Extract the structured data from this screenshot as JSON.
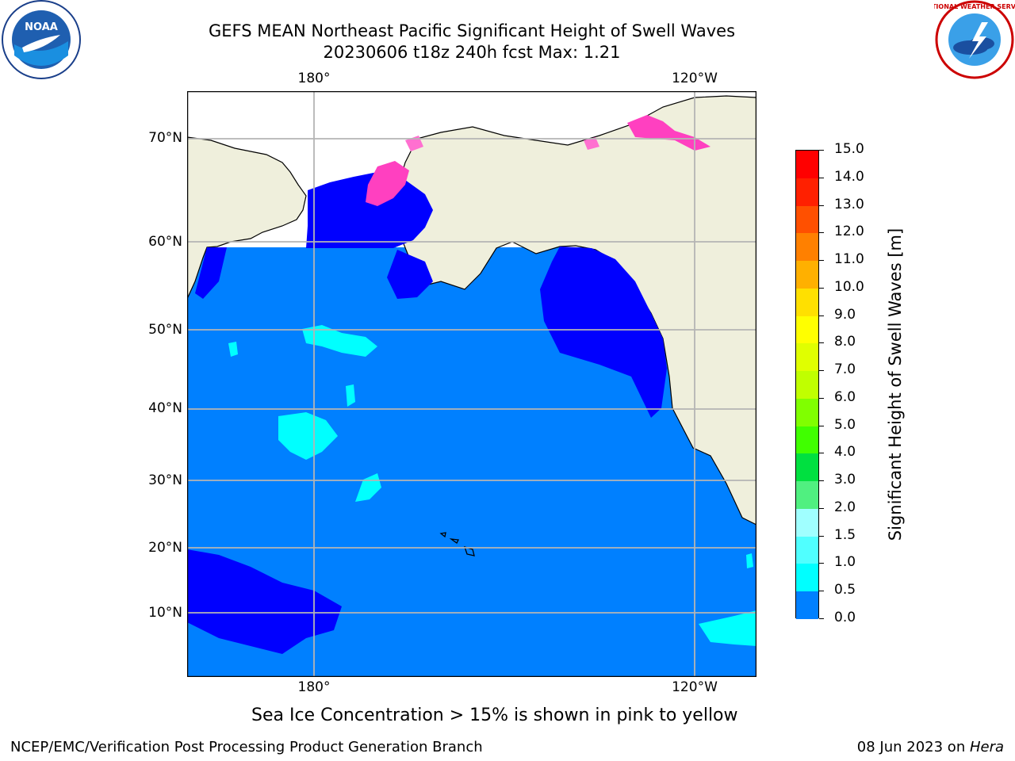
{
  "header": {
    "title_line1": "GEFS MEAN Northeast Pacific Significant Height of Swell Waves",
    "title_line2": "20230606 t18z 240h fcst   Max: 1.21"
  },
  "logos": {
    "left": "NOAA",
    "right": "NATIONAL WEATHER SERVICE"
  },
  "map": {
    "top_lon_labels": [
      "180°",
      "120°W"
    ],
    "bottom_lon_labels": [
      "180°",
      "120°W"
    ],
    "lat_labels": [
      "70°N",
      "60°N",
      "50°N",
      "40°N",
      "30°N",
      "20°N",
      "10°N"
    ],
    "colors": {
      "ocean": "#0080ff",
      "land": "#efefdc",
      "low": "#0000ff",
      "cyan": "#00ffff"
    }
  },
  "colorbar": {
    "title": "Significant Height of Swell Waves [m]",
    "labels": [
      "15.0",
      "14.0",
      "13.0",
      "12.0",
      "11.0",
      "10.0",
      "9.0",
      "8.0",
      "7.0",
      "6.0",
      "5.0",
      "4.0",
      "3.0",
      "2.0",
      "1.5",
      "1.0",
      "0.5",
      "0.0"
    ],
    "colors": [
      "#ff0000",
      "#ff2000",
      "#ff5000",
      "#ff8000",
      "#ffb000",
      "#ffe000",
      "#ffff00",
      "#e0ff00",
      "#c0ff00",
      "#80ff00",
      "#40ff00",
      "#00e040",
      "#50f080",
      "#a0ffff",
      "#50ffff",
      "#00ffff",
      "#0080ff",
      "#0000ff"
    ]
  },
  "notes": {
    "ice": "Sea Ice Concentration > 15% is shown in pink to yellow"
  },
  "footer": {
    "left": "NCEP/EMC/Verification Post Processing Product Generation Branch",
    "right_prefix": "08 Jun 2023 on ",
    "right_host": "Hera"
  }
}
